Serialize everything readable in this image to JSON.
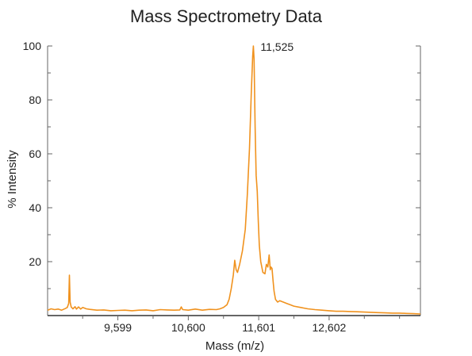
{
  "chart_data": {
    "type": "line",
    "title": "Mass Spectrometry Data",
    "xlabel": "Mass (m/z)",
    "ylabel": "% Intensity",
    "xlim": [
      8600,
      13900
    ],
    "ylim": [
      0,
      100
    ],
    "x_ticks": [
      9599,
      10600,
      11601,
      12602
    ],
    "x_tick_labels": [
      "9,599",
      "10,600",
      "11,601",
      "12,602"
    ],
    "y_ticks": [
      20,
      40,
      60,
      80,
      100
    ],
    "y_tick_labels": [
      "20",
      "40",
      "60",
      "80",
      "100"
    ],
    "grid": false,
    "legend": "none",
    "annotations": [
      {
        "x": 11525,
        "y": 100,
        "text": "11,525"
      }
    ],
    "series": [
      {
        "color": "#F0921E",
        "points": [
          [
            8600,
            2.0
          ],
          [
            8650,
            2.5
          ],
          [
            8700,
            2.2
          ],
          [
            8750,
            2.4
          ],
          [
            8800,
            2.0
          ],
          [
            8850,
            2.6
          ],
          [
            8880,
            3.0
          ],
          [
            8900,
            4.5
          ],
          [
            8910,
            15.0
          ],
          [
            8920,
            5.0
          ],
          [
            8935,
            3.2
          ],
          [
            8960,
            2.5
          ],
          [
            8990,
            3.3
          ],
          [
            9010,
            2.4
          ],
          [
            9040,
            3.2
          ],
          [
            9070,
            2.4
          ],
          [
            9100,
            3.0
          ],
          [
            9150,
            2.5
          ],
          [
            9200,
            2.3
          ],
          [
            9300,
            2.0
          ],
          [
            9400,
            2.1
          ],
          [
            9500,
            1.8
          ],
          [
            9600,
            1.9
          ],
          [
            9700,
            2.0
          ],
          [
            9800,
            1.8
          ],
          [
            9900,
            2.0
          ],
          [
            10000,
            2.1
          ],
          [
            10100,
            1.8
          ],
          [
            10200,
            2.2
          ],
          [
            10300,
            2.1
          ],
          [
            10400,
            2.0
          ],
          [
            10480,
            2.1
          ],
          [
            10500,
            3.2
          ],
          [
            10520,
            2.2
          ],
          [
            10600,
            2.0
          ],
          [
            10700,
            2.4
          ],
          [
            10800,
            2.0
          ],
          [
            10900,
            2.3
          ],
          [
            11000,
            2.2
          ],
          [
            11050,
            2.5
          ],
          [
            11100,
            3.0
          ],
          [
            11150,
            4.0
          ],
          [
            11180,
            6.0
          ],
          [
            11210,
            10.0
          ],
          [
            11240,
            15.0
          ],
          [
            11260,
            20.5
          ],
          [
            11280,
            17.0
          ],
          [
            11300,
            16.0
          ],
          [
            11330,
            19.0
          ],
          [
            11370,
            24.0
          ],
          [
            11410,
            32.0
          ],
          [
            11440,
            45.0
          ],
          [
            11470,
            62.0
          ],
          [
            11495,
            82.0
          ],
          [
            11515,
            96.0
          ],
          [
            11525,
            100.0
          ],
          [
            11535,
            95.0
          ],
          [
            11550,
            70.0
          ],
          [
            11565,
            52.0
          ],
          [
            11580,
            46.0
          ],
          [
            11595,
            35.0
          ],
          [
            11610,
            26.0
          ],
          [
            11630,
            20.0
          ],
          [
            11660,
            16.0
          ],
          [
            11690,
            15.5
          ],
          [
            11710,
            19.0
          ],
          [
            11730,
            18.0
          ],
          [
            11750,
            22.5
          ],
          [
            11765,
            17.0
          ],
          [
            11775,
            18.0
          ],
          [
            11790,
            17.5
          ],
          [
            11805,
            13.0
          ],
          [
            11820,
            9.0
          ],
          [
            11840,
            6.0
          ],
          [
            11870,
            5.0
          ],
          [
            11900,
            5.5
          ],
          [
            11950,
            5.0
          ],
          [
            12000,
            4.5
          ],
          [
            12050,
            4.0
          ],
          [
            12100,
            3.5
          ],
          [
            12200,
            3.0
          ],
          [
            12300,
            2.5
          ],
          [
            12400,
            2.2
          ],
          [
            12500,
            2.0
          ],
          [
            12600,
            1.8
          ],
          [
            12700,
            1.6
          ],
          [
            12800,
            1.6
          ],
          [
            12900,
            1.5
          ],
          [
            13000,
            1.4
          ],
          [
            13100,
            1.3
          ],
          [
            13200,
            1.2
          ],
          [
            13300,
            1.1
          ],
          [
            13400,
            1.0
          ],
          [
            13500,
            0.9
          ],
          [
            13600,
            0.9
          ],
          [
            13700,
            0.8
          ],
          [
            13800,
            0.7
          ],
          [
            13900,
            0.6
          ]
        ]
      }
    ]
  }
}
